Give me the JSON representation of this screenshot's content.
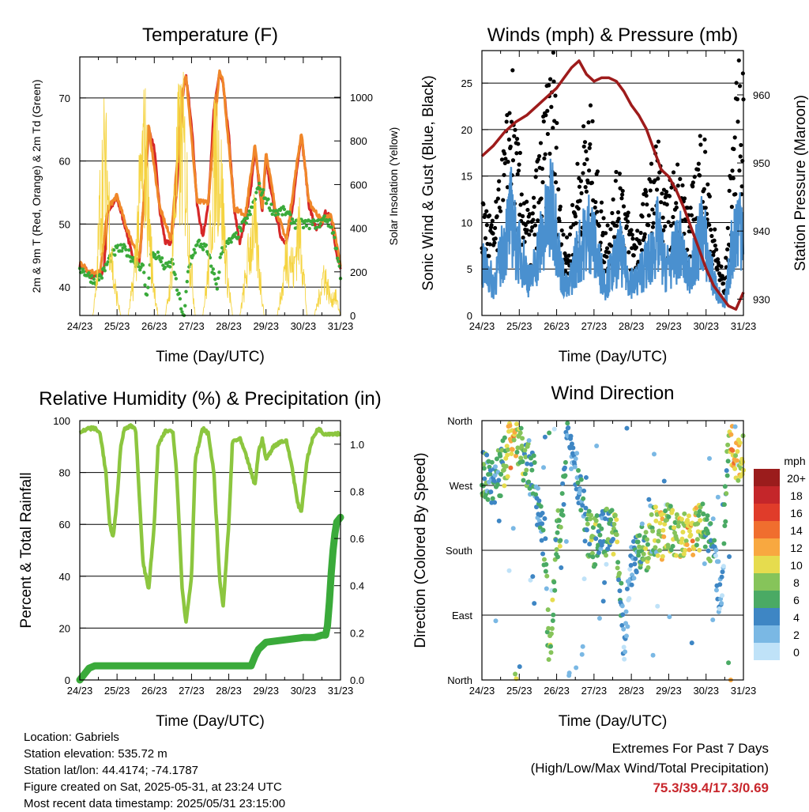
{
  "chart_data": [
    {
      "type": "line",
      "title": "Temperature (F)",
      "xlabel": "Time (Day/UTC)",
      "ylabel": "2m & 9m T (Red, Orange) & 2m Td (Green)",
      "ylabel_right": "Solar Insolation (Yellow)",
      "x_ticks": [
        "24/23",
        "25/23",
        "26/23",
        "27/23",
        "28/23",
        "29/23",
        "30/23",
        "31/23"
      ],
      "ylim": [
        35.5,
        76.5
      ],
      "y_ticks": [
        40,
        50,
        60,
        70
      ],
      "ylim_right": [
        0,
        1185
      ],
      "y_ticks_right": [
        0,
        200,
        400,
        600,
        800,
        1000
      ],
      "grid": true,
      "series": [
        {
          "name": "2m T",
          "color": "#d62728",
          "axis": "left",
          "x": [
            0,
            0.15,
            0.25,
            0.35,
            0.45,
            0.55,
            0.65,
            0.75,
            1.0,
            1.1,
            1.25,
            1.4,
            1.6,
            1.75,
            1.85,
            2.0,
            2.15,
            2.3,
            2.45,
            2.6,
            2.75,
            2.85,
            3.0,
            3.15,
            3.3,
            3.45,
            3.6,
            3.75,
            3.85,
            4.0,
            4.15,
            4.3,
            4.45,
            4.6,
            4.7,
            4.9,
            5.0,
            5.1,
            5.25,
            5.4,
            5.55,
            5.7,
            5.85,
            5.95,
            6.05,
            6.15,
            6.35,
            6.5,
            6.6,
            6.75,
            6.9,
            7.0
          ],
          "y": [
            43.5,
            43,
            42,
            41.5,
            42,
            41.8,
            43,
            52,
            54,
            52,
            49,
            45,
            44,
            56,
            65,
            62,
            52,
            47,
            47,
            55,
            70,
            73.5,
            66,
            53,
            48,
            53,
            68,
            74,
            72,
            64,
            52,
            47,
            51,
            56,
            62,
            52,
            61,
            56,
            52,
            48,
            47,
            52,
            60,
            64,
            59,
            53,
            49,
            50,
            52,
            51,
            45,
            43
          ]
        },
        {
          "name": "9m T",
          "color": "#f0872a",
          "axis": "left",
          "x": [
            0,
            0.25,
            0.55,
            0.75,
            1.0,
            1.25,
            1.6,
            1.75,
            1.85,
            2.15,
            2.45,
            2.75,
            2.85,
            3.15,
            3.45,
            3.75,
            3.85,
            4.15,
            4.45,
            4.7,
            4.9,
            5.0,
            5.25,
            5.55,
            5.85,
            5.95,
            6.15,
            6.5,
            6.75,
            7.0
          ],
          "y": [
            44,
            42.5,
            42.3,
            52.5,
            54.5,
            49.5,
            44.5,
            56.5,
            65.5,
            52.5,
            47.5,
            70.5,
            74,
            53.5,
            53.5,
            74.5,
            72.5,
            52.5,
            51.5,
            62.5,
            52.5,
            61.5,
            52.5,
            47.5,
            60.5,
            64.5,
            53.5,
            50.5,
            51.5,
            43.5
          ]
        },
        {
          "name": "2m Td",
          "color": "#3aaa3a",
          "axis": "left",
          "x": [
            0,
            0.2,
            0.4,
            0.6,
            0.8,
            1.0,
            1.2,
            1.5,
            1.7,
            1.8,
            1.9,
            2.1,
            2.3,
            2.5,
            2.6,
            2.8,
            2.9,
            3.0,
            3.2,
            3.4,
            3.6,
            3.7,
            3.8,
            4.0,
            4.2,
            4.4,
            4.6,
            4.8,
            5.0,
            5.2,
            5.5,
            5.8,
            6.0,
            6.2,
            6.4,
            6.6,
            6.8,
            7.0
          ],
          "y": [
            43,
            42,
            41,
            42,
            44.5,
            46,
            46,
            44,
            43,
            38,
            45,
            45,
            43,
            44,
            40,
            35,
            42,
            45,
            47,
            46,
            42,
            40,
            46,
            47,
            48,
            50,
            52,
            56,
            54,
            52,
            52,
            50,
            50,
            50,
            50,
            51,
            49,
            42
          ]
        },
        {
          "name": "Solar Insolation",
          "color": "#f5d442",
          "axis": "right",
          "x": [
            0,
            0.35,
            0.45,
            0.55,
            0.65,
            0.75,
            0.9,
            1.1,
            1.3,
            1.45,
            1.55,
            1.65,
            1.75,
            1.85,
            1.95,
            2.1,
            2.3,
            2.45,
            2.55,
            2.65,
            2.75,
            2.85,
            2.95,
            3.1,
            3.3,
            3.45,
            3.55,
            3.65,
            3.75,
            3.85,
            3.95,
            4.1,
            4.3,
            4.45,
            4.55,
            4.65,
            4.75,
            4.85,
            4.95,
            5.1,
            5.3,
            5.45,
            5.55,
            5.65,
            5.75,
            5.85,
            5.95,
            6.1,
            6.3,
            6.45,
            6.55,
            6.65,
            6.75,
            6.85,
            7.0
          ],
          "y": [
            0,
            0,
            200,
            800,
            1040,
            900,
            250,
            0,
            0,
            250,
            600,
            950,
            1160,
            700,
            300,
            0,
            0,
            250,
            800,
            1100,
            1180,
            1000,
            450,
            0,
            0,
            300,
            800,
            1150,
            1080,
            700,
            300,
            0,
            0,
            250,
            450,
            600,
            500,
            250,
            0,
            0,
            0,
            200,
            450,
            400,
            300,
            600,
            500,
            0,
            0,
            150,
            300,
            200,
            100,
            150,
            0
          ]
        }
      ]
    },
    {
      "type": "scatter",
      "title": "Winds (mph) & Pressure (mb)",
      "xlabel": "Time (Day/UTC)",
      "ylabel": "Sonic Wind & Gust (Blue, Black)",
      "ylabel_right": "Station Pressure (Maroon)",
      "x_ticks": [
        "24/23",
        "25/23",
        "26/23",
        "27/23",
        "28/23",
        "29/23",
        "30/23",
        "31/23"
      ],
      "ylim": [
        0,
        28.5
      ],
      "y_ticks": [
        0,
        5,
        10,
        15,
        20,
        25
      ],
      "ylim_right": [
        927.6,
        966.5
      ],
      "y_ticks_right": [
        930,
        940,
        950,
        960
      ],
      "grid": true,
      "series": [
        {
          "name": "Gust",
          "color": "#000000",
          "axis": "left",
          "x": [
            0.1,
            0.3,
            0.5,
            0.7,
            0.8,
            0.9,
            1.1,
            1.3,
            1.5,
            1.7,
            1.9,
            2.1,
            2.3,
            2.5,
            2.7,
            2.9,
            3.1,
            3.3,
            3.5,
            3.7,
            3.9,
            4.1,
            4.3,
            4.5,
            4.7,
            4.9,
            5.1,
            5.3,
            5.5,
            5.7,
            5.9,
            6.1,
            6.3,
            6.5,
            6.7,
            6.9
          ],
          "y": [
            10,
            8,
            12,
            18,
            22,
            16,
            12,
            8,
            14,
            18,
            24,
            10,
            6,
            12,
            16,
            18,
            12,
            8,
            10,
            14,
            9,
            7,
            10,
            12,
            16,
            10,
            12,
            14,
            9,
            12,
            18,
            10,
            6,
            3,
            16,
            22
          ]
        },
        {
          "name": "Sonic Wind",
          "color": "#4a90cf",
          "axis": "left",
          "x": [
            0.1,
            0.3,
            0.5,
            0.7,
            0.8,
            0.9,
            1.1,
            1.3,
            1.5,
            1.7,
            1.9,
            2.1,
            2.3,
            2.5,
            2.7,
            2.9,
            3.1,
            3.3,
            3.5,
            3.7,
            3.9,
            4.1,
            4.3,
            4.5,
            4.7,
            4.9,
            5.1,
            5.3,
            5.5,
            5.7,
            5.9,
            6.1,
            6.3,
            6.5,
            6.7,
            6.9
          ],
          "y": [
            6,
            4,
            7,
            11,
            13,
            9,
            7,
            4,
            8,
            11,
            14,
            6,
            3,
            7,
            9,
            11,
            7,
            4,
            6,
            8,
            5,
            4,
            6,
            7,
            10,
            6,
            7,
            9,
            5,
            7,
            11,
            6,
            3,
            1,
            9,
            12
          ]
        },
        {
          "name": "Station Pressure",
          "color": "#9e1b1b",
          "axis": "right",
          "x": [
            0,
            0.3,
            0.6,
            0.9,
            1.2,
            1.5,
            1.8,
            2.0,
            2.2,
            2.4,
            2.6,
            2.8,
            3.0,
            3.2,
            3.4,
            3.6,
            3.8,
            4.0,
            4.2,
            4.4,
            4.6,
            4.8,
            5.0,
            5.2,
            5.4,
            5.6,
            5.8,
            6.0,
            6.2,
            6.4,
            6.6,
            6.8,
            7.0
          ],
          "y": [
            951,
            952.5,
            954.5,
            956,
            957,
            958.5,
            960,
            961,
            962.5,
            964,
            965,
            963,
            962,
            962.5,
            962.5,
            962,
            960.5,
            958.5,
            957,
            955,
            952,
            949,
            948,
            946,
            943.5,
            940.5,
            937.5,
            934.5,
            932,
            930.5,
            929,
            928.5,
            931
          ]
        }
      ]
    },
    {
      "type": "line",
      "title": "Relative Humidity (%) & Precipitation (in)",
      "xlabel": "Time (Day/UTC)",
      "ylabel": "Percent & Total Rainfall",
      "x_ticks": [
        "24/23",
        "25/23",
        "26/23",
        "27/23",
        "28/23",
        "29/23",
        "30/23",
        "31/23"
      ],
      "ylim": [
        0,
        100
      ],
      "y_ticks": [
        0,
        20,
        40,
        60,
        80,
        100
      ],
      "ylim_right": [
        0,
        1.1
      ],
      "y_ticks_right": [
        0.0,
        0.2,
        0.4,
        0.6,
        0.8,
        1.0
      ],
      "grid": true,
      "series": [
        {
          "name": "Relative Humidity",
          "color": "#8cc63f",
          "axis": "left",
          "x": [
            0,
            0.2,
            0.4,
            0.55,
            0.7,
            0.8,
            0.9,
            1.0,
            1.1,
            1.2,
            1.35,
            1.5,
            1.6,
            1.7,
            1.85,
            2.0,
            2.1,
            2.3,
            2.5,
            2.6,
            2.75,
            2.85,
            3.0,
            3.1,
            3.3,
            3.45,
            3.6,
            3.75,
            3.85,
            4.0,
            4.1,
            4.3,
            4.5,
            4.6,
            4.7,
            4.8,
            4.9,
            5.0,
            5.2,
            5.4,
            5.55,
            5.7,
            5.85,
            5.95,
            6.1,
            6.25,
            6.4,
            6.55,
            6.7,
            6.85,
            7.0
          ],
          "y": [
            95,
            97,
            97,
            95,
            80,
            60,
            55,
            70,
            90,
            97,
            98,
            97,
            70,
            45,
            35,
            60,
            90,
            96,
            96,
            80,
            35,
            22,
            40,
            85,
            97,
            95,
            80,
            40,
            28,
            60,
            92,
            93,
            85,
            80,
            75,
            88,
            93,
            85,
            90,
            92,
            92,
            82,
            68,
            65,
            85,
            93,
            97,
            95,
            95,
            95,
            95
          ]
        },
        {
          "name": "Total Precipitation",
          "color": "#3aaa3a",
          "axis": "right",
          "x": [
            0,
            0.1,
            0.25,
            0.4,
            4.6,
            4.7,
            4.8,
            5.0,
            5.5,
            6.0,
            6.3,
            6.5,
            6.6,
            6.65,
            6.7,
            6.75,
            6.8,
            6.85,
            6.9,
            7.0
          ],
          "y": [
            0,
            0.02,
            0.05,
            0.06,
            0.06,
            0.1,
            0.13,
            0.16,
            0.17,
            0.18,
            0.18,
            0.19,
            0.19,
            0.23,
            0.33,
            0.45,
            0.55,
            0.62,
            0.67,
            0.69
          ]
        }
      ]
    },
    {
      "type": "scatter",
      "title": "Wind Direction",
      "xlabel": "Time (Day/UTC)",
      "ylabel": "Direction (Colored By Speed)",
      "x_ticks": [
        "24/23",
        "25/23",
        "26/23",
        "27/23",
        "28/23",
        "29/23",
        "30/23",
        "31/23"
      ],
      "y_ticks": [
        "North",
        "East",
        "South",
        "West",
        "North"
      ],
      "ylim": [
        0,
        360
      ],
      "grid": true,
      "colorbar": {
        "title": "mph",
        "labels": [
          "20+",
          "18",
          "16",
          "14",
          "12",
          "10",
          "8",
          "6",
          "4",
          "2",
          "0"
        ],
        "colors": [
          "#9b1c1c",
          "#c4262a",
          "#e03c2a",
          "#f06e2e",
          "#f8a840",
          "#e6dc4e",
          "#86c45a",
          "#4aaa64",
          "#3e86c4",
          "#7ab8e4",
          "#bfe2f8"
        ]
      },
      "series": [
        {
          "name": "Direction",
          "x": [
            0.1,
            0.2,
            0.3,
            0.5,
            0.8,
            0.9,
            1.0,
            1.4,
            1.6,
            1.7,
            1.8,
            2.0,
            2.1,
            2.3,
            2.5,
            2.8,
            3.0,
            3.2,
            3.4,
            3.6,
            3.8,
            4.0,
            4.2,
            4.4,
            4.6,
            4.8,
            5.0,
            5.2,
            5.4,
            5.6,
            5.8,
            6.0,
            6.2,
            6.4,
            6.6,
            6.7,
            6.8,
            6.9
          ],
          "y": [
            285,
            280,
            275,
            290,
            330,
            345,
            320,
            280,
            200,
            190,
            10,
            200,
            210,
            350,
            300,
            210,
            190,
            200,
            210,
            195,
            50,
            150,
            190,
            180,
            210,
            200,
            210,
            205,
            200,
            200,
            210,
            210,
            190,
            100,
            350,
            330,
            315,
            305
          ],
          "speed": [
            6,
            4,
            4,
            5,
            12,
            10,
            8,
            4,
            4,
            6,
            8,
            6,
            8,
            4,
            2,
            6,
            8,
            4,
            6,
            8,
            2,
            2,
            6,
            8,
            8,
            10,
            8,
            8,
            10,
            12,
            8,
            6,
            4,
            2,
            8,
            12,
            10,
            10
          ]
        }
      ]
    }
  ],
  "info": {
    "location": "Location: Gabriels",
    "elevation": "Station elevation: 535.72 m",
    "latlon": "Station lat/lon: 44.4174; -74.1787",
    "created": "Figure created on Sat, 2025-05-31, at 23:24 UTC",
    "timestamp": "Most recent data timestamp: 2025/05/31 23:15:00"
  },
  "extremes": {
    "title": "Extremes For Past 7 Days",
    "subtitle": "(High/Low/Max Wind/Total Precipitation)",
    "value": "75.3/39.4/17.3/0.69",
    "value_color": "#c8262c"
  }
}
